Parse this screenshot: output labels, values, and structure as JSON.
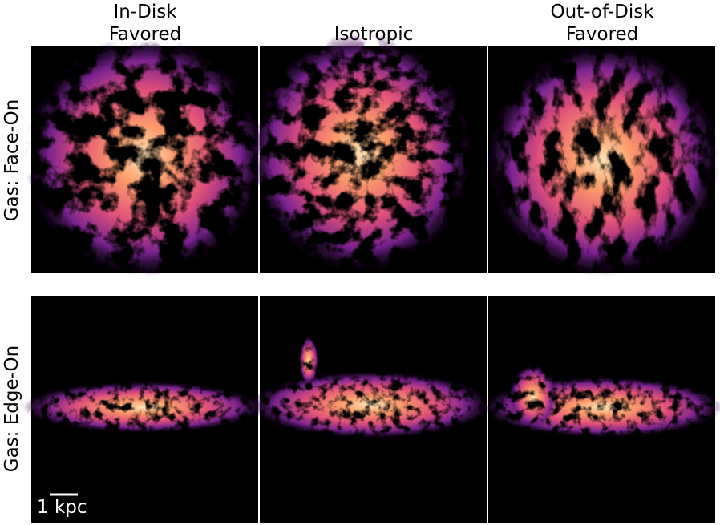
{
  "columns": [
    {
      "lines": [
        "In-Disk",
        "Favored"
      ]
    },
    {
      "lines": [
        "Isotropic"
      ]
    },
    {
      "lines": [
        "Out-of-Disk",
        "Favored"
      ]
    }
  ],
  "rows": [
    {
      "label": "Gas: Face-On"
    },
    {
      "label": "Gas: Edge-On"
    }
  ],
  "scale_bar": {
    "label": "1 kpc"
  }
}
